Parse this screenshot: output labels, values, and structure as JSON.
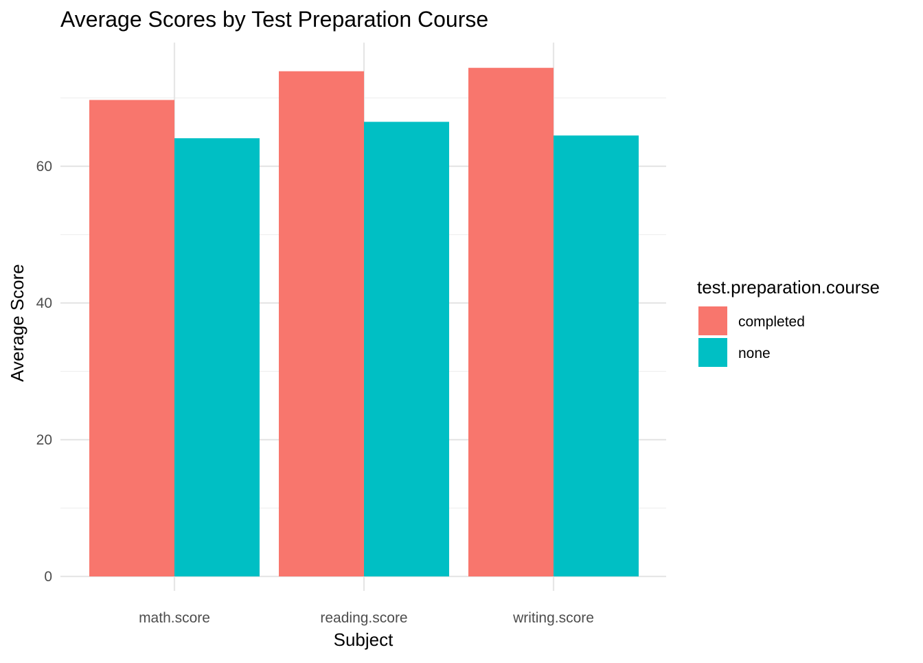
{
  "chart_data": {
    "type": "bar",
    "title": "Average Scores by Test Preparation Course",
    "xlabel": "Subject",
    "ylabel": "Average Score",
    "categories": [
      "math.score",
      "reading.score",
      "writing.score"
    ],
    "series": [
      {
        "name": "completed",
        "values": [
          69.7,
          73.9,
          74.4
        ],
        "color": "#F8766D"
      },
      {
        "name": "none",
        "values": [
          64.1,
          66.5,
          64.5
        ],
        "color": "#00BFC4"
      }
    ],
    "ylim": [
      0,
      78
    ],
    "yticks": [
      0,
      20,
      40,
      60
    ],
    "grid": true,
    "legend": {
      "title": "test.preparation.course",
      "position": "right"
    }
  }
}
